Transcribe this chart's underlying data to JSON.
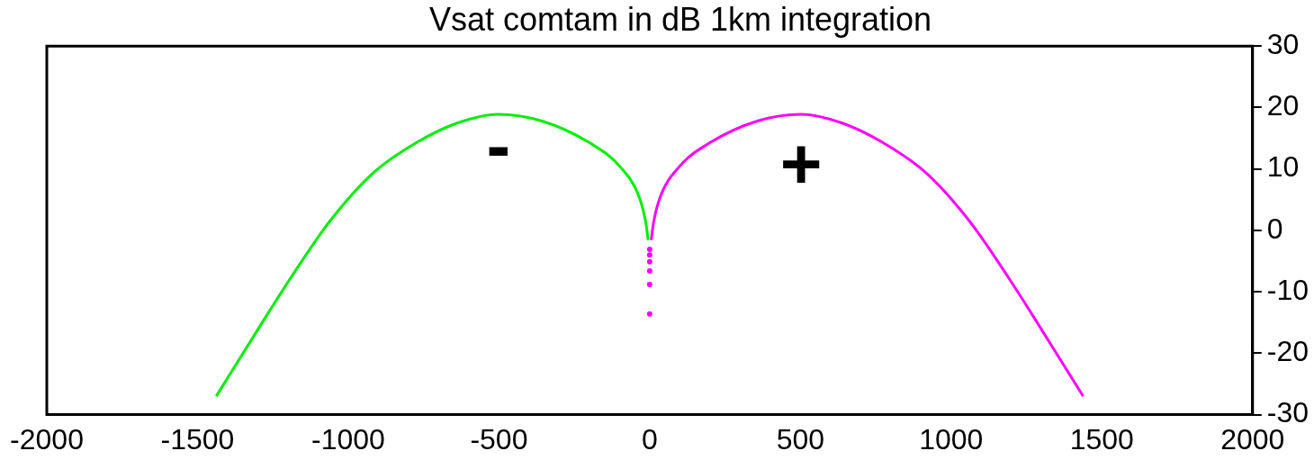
{
  "chart_data": {
    "type": "line",
    "title": "Vsat comtam in dB 1km integration",
    "xlim": [
      -2000,
      2000
    ],
    "xticks": [
      -2000,
      -1500,
      -1000,
      -500,
      0,
      500,
      1000,
      1500,
      2000
    ],
    "ylim": [
      -30,
      30
    ],
    "yticks": [
      -30,
      -20,
      -10,
      0,
      10,
      20,
      30
    ],
    "grid": false,
    "legend": false,
    "series": [
      {
        "color": "#00ee00",
        "x": [
          -1438,
          -1293,
          -1189,
          -1064,
          -918,
          -773,
          -637,
          -502,
          -357,
          -201,
          -97,
          -34,
          -13,
          -5
        ],
        "values": [
          -27.0,
          -15.6,
          -7.6,
          1.3,
          9.3,
          14.3,
          17.5,
          18.9,
          17.8,
          14.3,
          10.3,
          5.3,
          1.3,
          -1.6
        ]
      },
      {
        "color": "#ff00ff",
        "x": [
          5,
          13,
          34,
          97,
          201,
          357,
          502,
          637,
          773,
          918,
          1064,
          1189,
          1293,
          1438
        ],
        "values": [
          -1.6,
          1.3,
          5.3,
          10.3,
          14.3,
          17.8,
          18.9,
          17.5,
          14.3,
          9.3,
          1.3,
          -7.6,
          -15.6,
          -27.0
        ]
      },
      {
        "type": "scatter",
        "marker": "circle",
        "color": "#ff00ff",
        "x": [
          0,
          0,
          0,
          0,
          0,
          0
        ],
        "values": [
          -13.6,
          -8.8,
          -6.6,
          -5.1,
          -4.0,
          -3.1
        ]
      }
    ],
    "annotations": [
      "-",
      "+"
    ]
  }
}
